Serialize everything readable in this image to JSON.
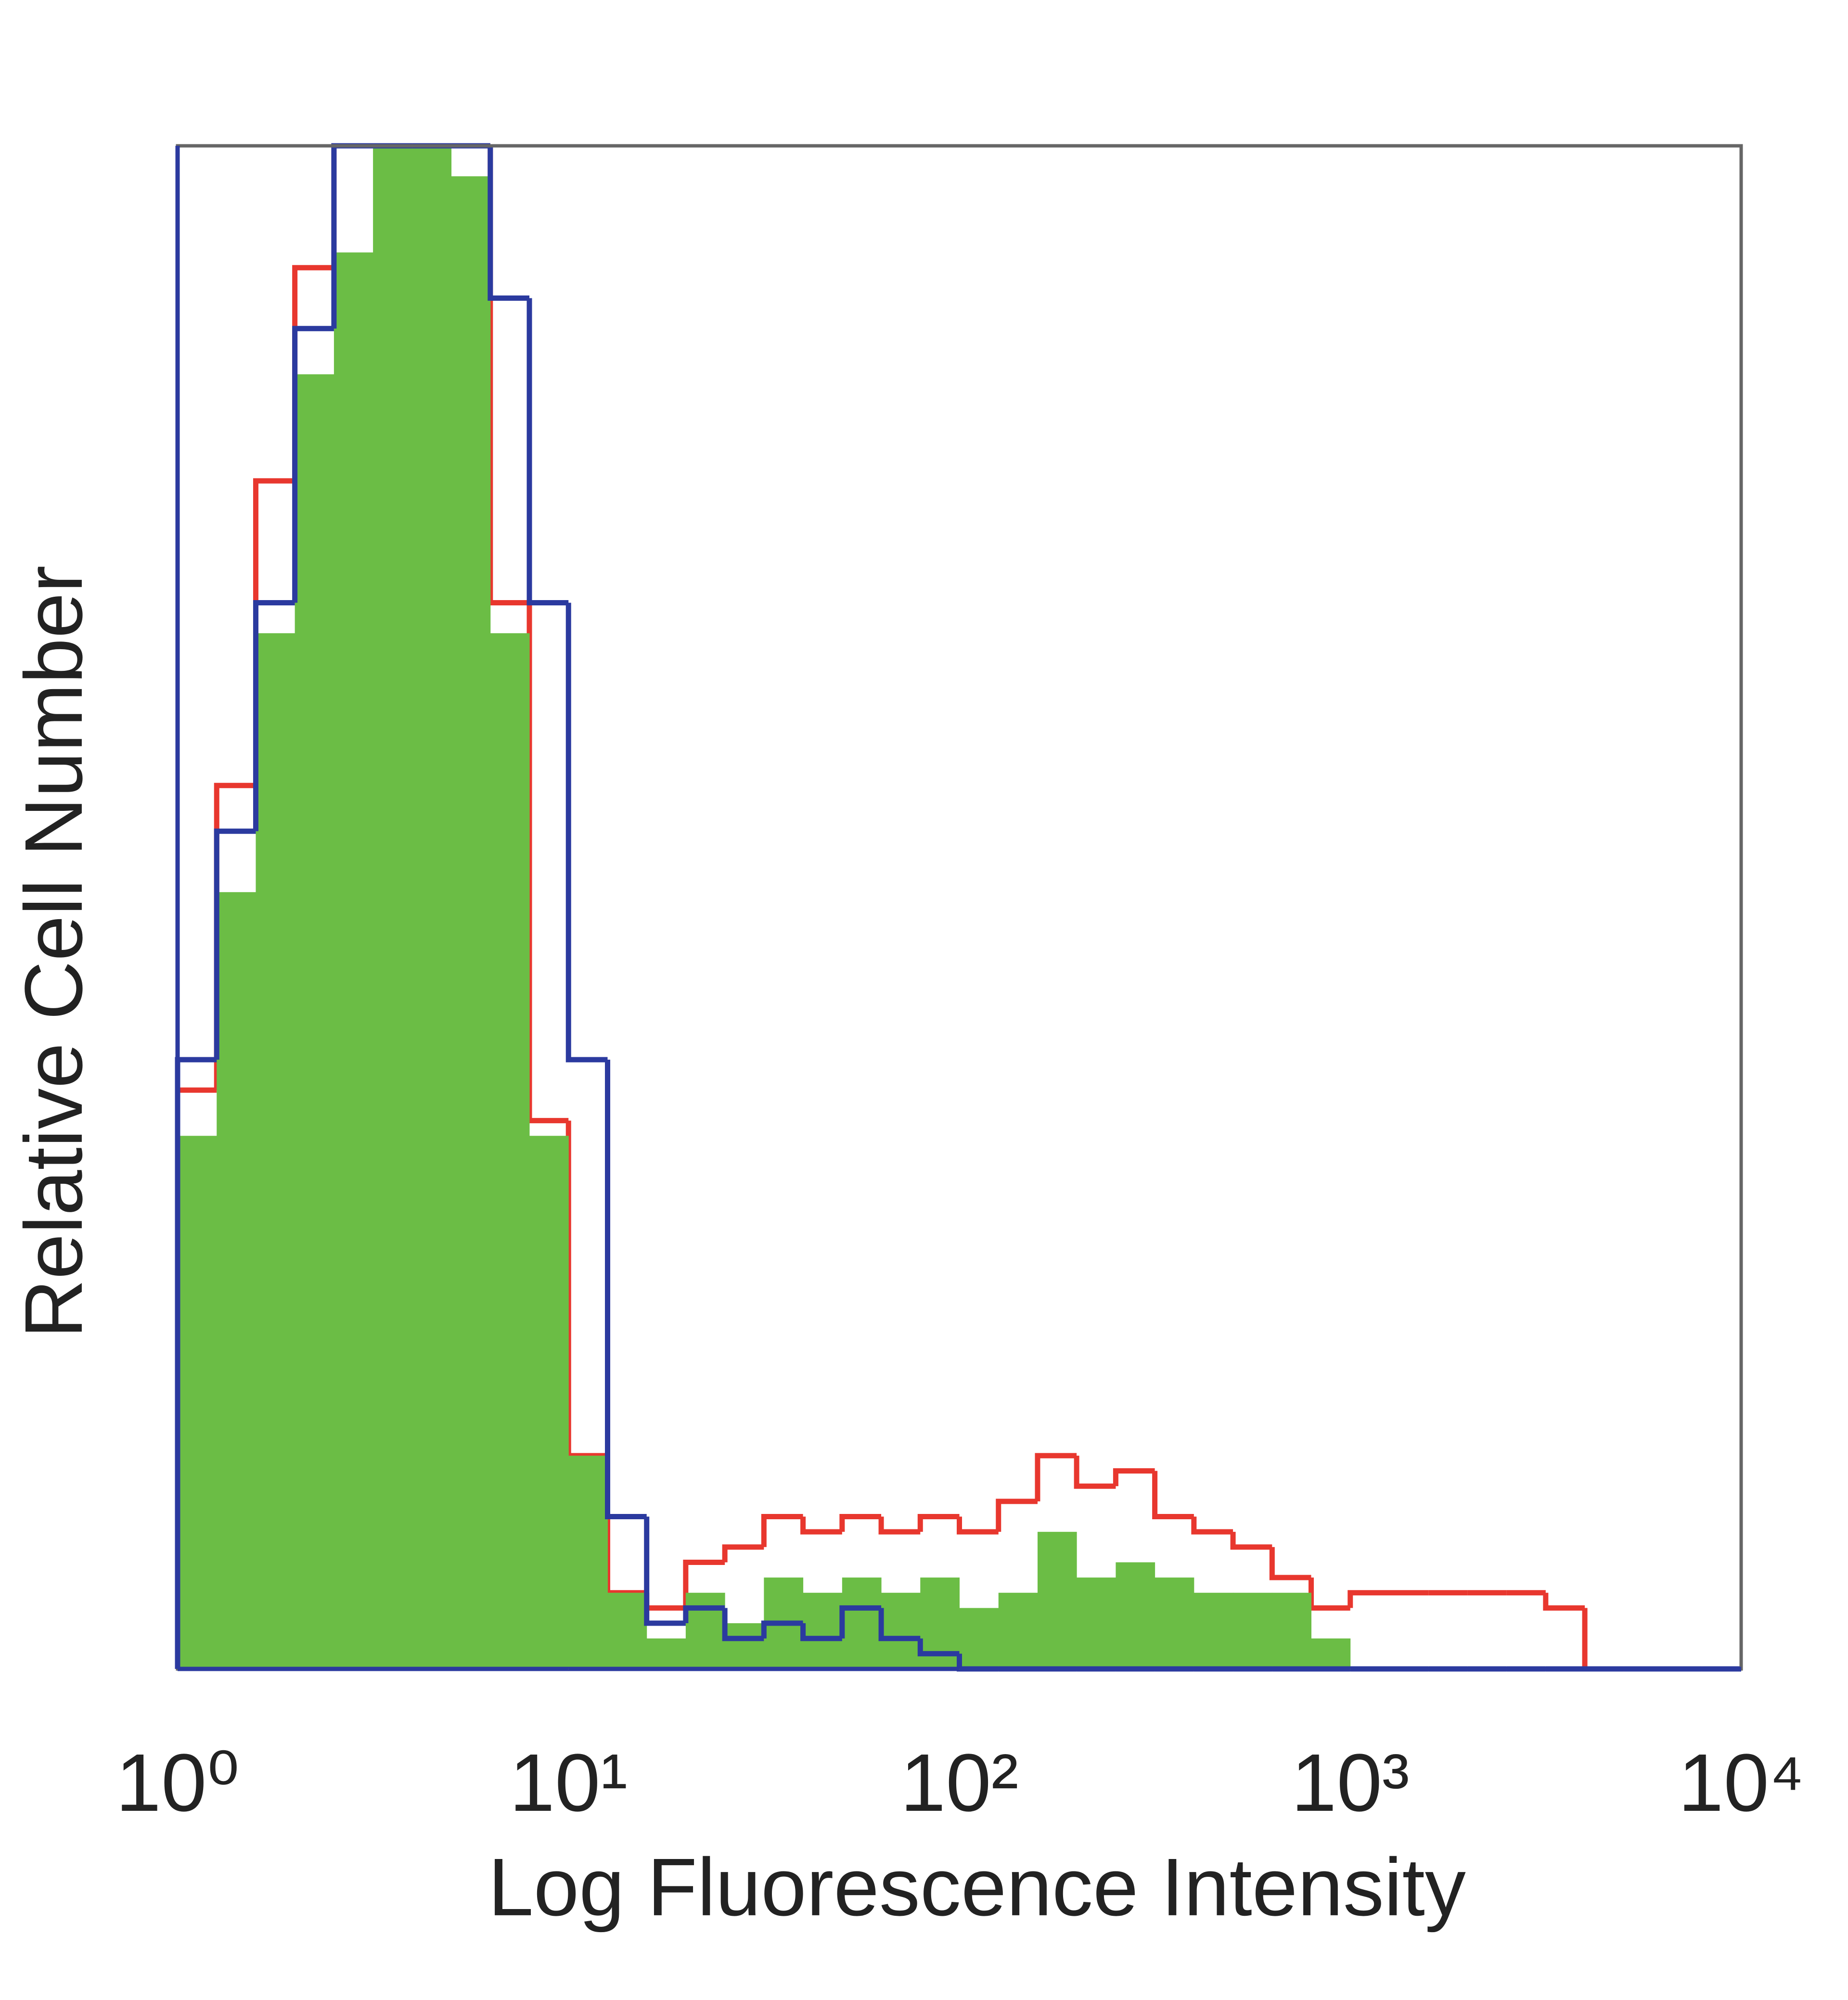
{
  "chart_data": {
    "type": "histogram",
    "x_label": "Log Fluorescence Intensity",
    "y_label": "Relative Cell Number",
    "x_log": true,
    "xlim": [
      1,
      10000
    ],
    "xticks": [
      {
        "value": 1,
        "label": "10⁰"
      },
      {
        "value": 10,
        "label": "10¹"
      },
      {
        "value": 100,
        "label": "10²"
      },
      {
        "value": 1000,
        "label": "10³"
      },
      {
        "value": 10000,
        "label": "10⁴"
      }
    ],
    "ylim": [
      0,
      100
    ],
    "bins": [
      1,
      1.259,
      1.585,
      1.995,
      2.512,
      3.162,
      3.981,
      5.012,
      6.31,
      7.943,
      10,
      12.59,
      15.85,
      19.95,
      25.12,
      31.62,
      39.81,
      50.12,
      63.1,
      79.43,
      100,
      125.9,
      158.5,
      199.5,
      251.2,
      316.2,
      398.1,
      501.2,
      631,
      794.3,
      1000,
      1259,
      1585,
      1995,
      2512,
      3162,
      3981,
      5012,
      6310,
      7943,
      10000
    ],
    "series": [
      {
        "name": "red",
        "color": "#e8372e",
        "fill": false,
        "values": [
          38,
          58,
          78,
          92,
          100,
          100,
          100,
          100,
          70,
          36,
          14,
          5,
          4,
          7,
          8,
          10,
          9,
          10,
          9,
          10,
          9,
          11,
          14,
          12,
          13,
          10,
          9,
          8,
          6,
          4,
          5,
          5,
          5,
          5,
          5,
          4,
          0,
          0,
          0,
          0
        ]
      },
      {
        "name": "green",
        "color": "#6bbd45",
        "fill": true,
        "values": [
          35,
          51,
          68,
          85,
          93,
          100,
          100,
          98,
          68,
          35,
          14,
          5,
          2,
          5,
          3,
          6,
          5,
          6,
          5,
          6,
          4,
          5,
          9,
          6,
          7,
          6,
          5,
          5,
          5,
          2,
          0,
          0,
          0,
          0,
          0,
          0,
          0,
          0,
          0,
          0
        ]
      },
      {
        "name": "blue",
        "color": "#2b3a9f",
        "fill": false,
        "values": [
          40,
          55,
          70,
          88,
          100,
          100,
          100,
          100,
          90,
          70,
          40,
          10,
          3,
          4,
          2,
          3,
          2,
          4,
          2,
          1,
          0,
          0,
          0,
          0,
          0,
          0,
          0,
          0,
          0,
          0,
          0,
          0,
          0,
          0,
          0,
          0,
          0,
          0,
          0,
          0
        ]
      }
    ]
  }
}
